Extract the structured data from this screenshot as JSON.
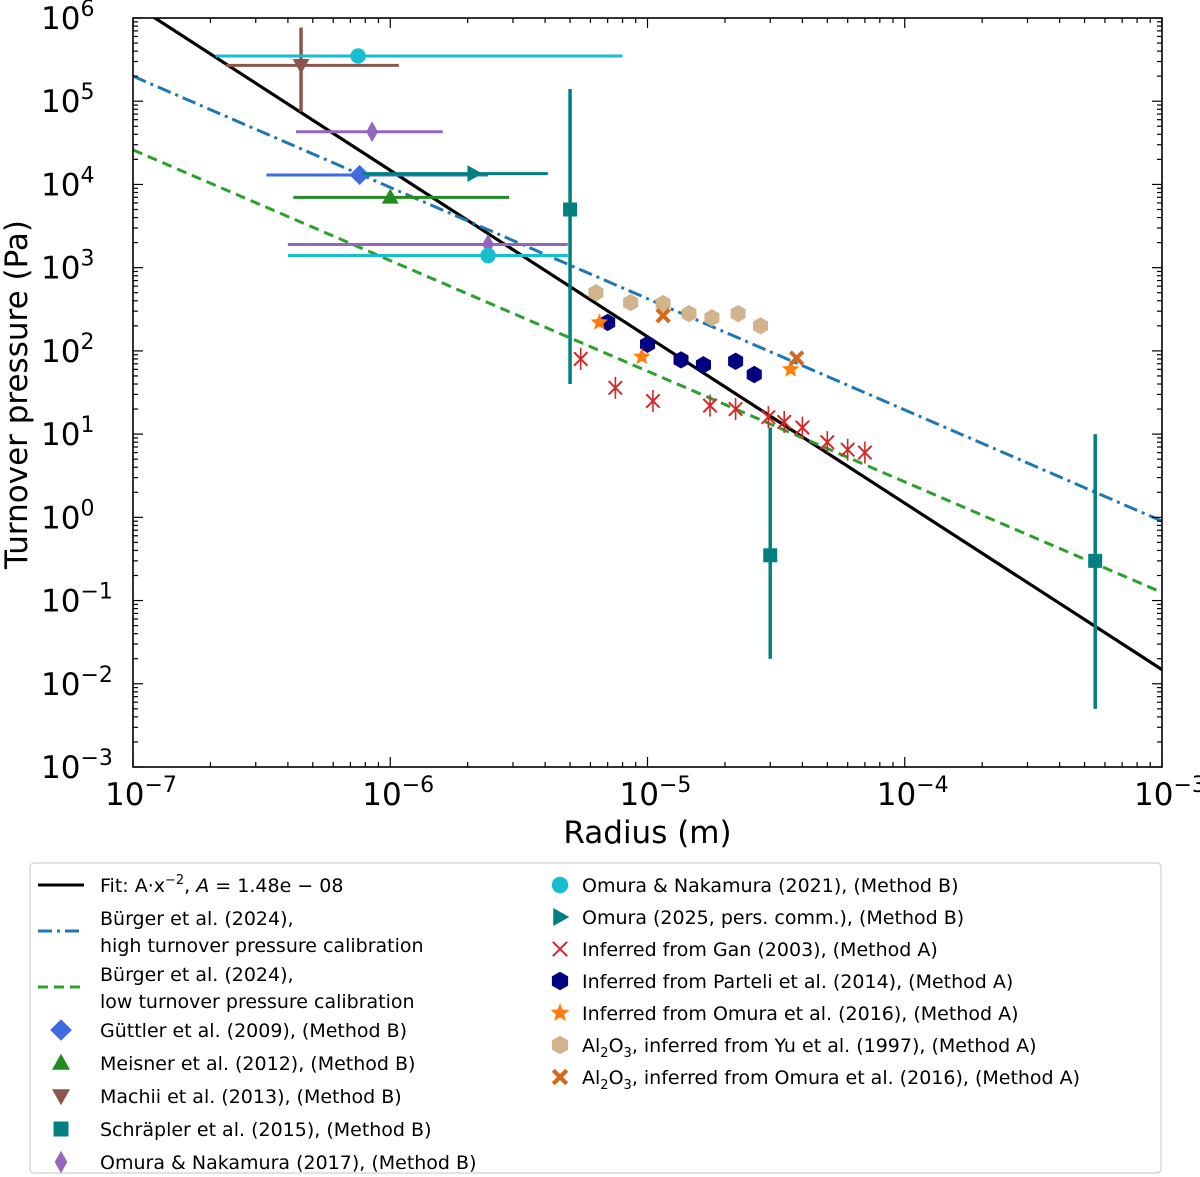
{
  "chart_data": {
    "type": "scatter",
    "xscale": "log",
    "yscale": "log",
    "xlabel": "Radius (m)",
    "ylabel": "Turnover pressure (Pa)",
    "xlim": [
      1e-07,
      0.001
    ],
    "ylim": [
      0.001,
      1000000.0
    ],
    "x_ticks": [
      {
        "value": 1e-07,
        "base": "10",
        "exp": "−7"
      },
      {
        "value": 1e-06,
        "base": "10",
        "exp": "−6"
      },
      {
        "value": 1e-05,
        "base": "10",
        "exp": "−5"
      },
      {
        "value": 0.0001,
        "base": "10",
        "exp": "−4"
      },
      {
        "value": 0.001,
        "base": "10",
        "exp": "−3"
      }
    ],
    "y_ticks": [
      {
        "value": 0.001,
        "base": "10",
        "exp": "−3"
      },
      {
        "value": 0.01,
        "base": "10",
        "exp": "−2"
      },
      {
        "value": 0.1,
        "base": "10",
        "exp": "−1"
      },
      {
        "value": 1.0,
        "base": "10",
        "exp": "0"
      },
      {
        "value": 10.0,
        "base": "10",
        "exp": "1"
      },
      {
        "value": 100.0,
        "base": "10",
        "exp": "2"
      },
      {
        "value": 1000.0,
        "base": "10",
        "exp": "3"
      },
      {
        "value": 10000.0,
        "base": "10",
        "exp": "4"
      },
      {
        "value": 100000.0,
        "base": "10",
        "exp": "5"
      },
      {
        "value": 1000000.0,
        "base": "10",
        "exp": "6"
      }
    ],
    "lines": [
      {
        "id": "fit",
        "color": "#000000",
        "dash": "solid",
        "A": 1.48e-08,
        "exponent": -2
      },
      {
        "id": "burger_high",
        "color": "#1f77b4",
        "dash": "dashdot",
        "points": [
          [
            1e-07,
            200000.0
          ],
          [
            0.001,
            0.9
          ]
        ]
      },
      {
        "id": "burger_low",
        "color": "#2ca02c",
        "dash": "dashed",
        "points": [
          [
            1e-07,
            26000.0
          ],
          [
            0.001,
            0.125
          ]
        ]
      }
    ],
    "series": [
      {
        "name": "Güttler (2009)",
        "marker": "diamond",
        "color": "#4169e1",
        "points": [
          {
            "x": 7.6e-07,
            "y": 13000,
            "xerr": [
              3.3e-07,
              2.4e-06
            ]
          }
        ]
      },
      {
        "name": "Meisner (2012)",
        "marker": "triangle-up",
        "color": "#228b22",
        "points": [
          {
            "x": 1e-06,
            "y": 7000,
            "xerr": [
              4.2e-07,
              2.9e-06
            ]
          }
        ]
      },
      {
        "name": "Machii (2013)",
        "marker": "triangle-down",
        "color": "#8c564b",
        "points": [
          {
            "x": 4.5e-07,
            "y": 270000,
            "xerr": [
              2.3e-07,
              1.08e-06
            ],
            "yerr": [
              75000,
              770000
            ]
          }
        ]
      },
      {
        "name": "Schräpler (2015)",
        "marker": "square",
        "color": "#008080",
        "points": [
          {
            "x": 5e-06,
            "y": 5000,
            "yerr": [
              40,
              140000
            ]
          },
          {
            "x": 3e-05,
            "y": 0.35,
            "yerr": [
              0.02,
              12
            ]
          },
          {
            "x": 0.00055,
            "y": 0.3,
            "yerr": [
              0.005,
              10
            ]
          }
        ]
      },
      {
        "name": "Omura & Nakamura (2017)",
        "marker": "thin-diamond",
        "color": "#9467bd",
        "points": [
          {
            "x": 8.5e-07,
            "y": 43000,
            "xerr": [
              4.3e-07,
              1.6e-06
            ]
          },
          {
            "x": 2.4e-06,
            "y": 1900,
            "xerr": [
              4e-07,
              4.9e-06
            ]
          }
        ]
      },
      {
        "name": "Omura & Nakamura (2021)",
        "marker": "circle",
        "color": "#17becf",
        "points": [
          {
            "x": 7.5e-07,
            "y": 350000,
            "xerr": [
              2.1e-07,
              8e-06
            ]
          },
          {
            "x": 2.4e-06,
            "y": 1400,
            "xerr": [
              4e-07,
              4.9e-06
            ]
          }
        ]
      },
      {
        "name": "Omura (2025)",
        "marker": "triangle-right",
        "color": "#008080",
        "points": [
          {
            "x": 3.2e-06,
            "y": 13500,
            "xerr": [
              7.8e-07,
              4.1e-06
            ],
            "arrow": true
          }
        ]
      },
      {
        "name": "Gan (2003)",
        "marker": "x",
        "color": "#d62728",
        "points": [
          {
            "x": 5.5e-06,
            "y": 80
          },
          {
            "x": 7.5e-06,
            "y": 36
          },
          {
            "x": 1.05e-05,
            "y": 25
          },
          {
            "x": 1.75e-05,
            "y": 22
          },
          {
            "x": 2.2e-05,
            "y": 20
          },
          {
            "x": 2.95e-05,
            "y": 16
          },
          {
            "x": 3.4e-05,
            "y": 14
          },
          {
            "x": 4e-05,
            "y": 12
          },
          {
            "x": 5e-05,
            "y": 8
          },
          {
            "x": 6e-05,
            "y": 6.5
          },
          {
            "x": 7e-05,
            "y": 6
          }
        ]
      },
      {
        "name": "Parteli (2014)",
        "marker": "hexagon",
        "color": "#000080",
        "points": [
          {
            "x": 7e-06,
            "y": 220
          },
          {
            "x": 1e-05,
            "y": 120
          },
          {
            "x": 1.35e-05,
            "y": 78
          },
          {
            "x": 1.65e-05,
            "y": 68
          },
          {
            "x": 2.2e-05,
            "y": 75
          },
          {
            "x": 2.6e-05,
            "y": 52
          }
        ]
      },
      {
        "name": "Omura (2016)",
        "marker": "star",
        "color": "#ff7f0e",
        "points": [
          {
            "x": 6.5e-06,
            "y": 220
          },
          {
            "x": 9.5e-06,
            "y": 85
          },
          {
            "x": 3.6e-05,
            "y": 60
          }
        ]
      },
      {
        "name": "Yu (1997)",
        "marker": "hexagon",
        "color": "#d2b48c",
        "points": [
          {
            "x": 6.3e-06,
            "y": 500
          },
          {
            "x": 8.6e-06,
            "y": 380
          },
          {
            "x": 1.15e-05,
            "y": 370
          },
          {
            "x": 1.45e-05,
            "y": 280
          },
          {
            "x": 1.78e-05,
            "y": 250
          },
          {
            "x": 2.25e-05,
            "y": 280
          },
          {
            "x": 2.75e-05,
            "y": 200
          }
        ]
      },
      {
        "name": "Al2O3 Omura (2016)",
        "marker": "X",
        "color": "#d2691e",
        "points": [
          {
            "x": 1.15e-05,
            "y": 265
          },
          {
            "x": 3.8e-05,
            "y": 82
          }
        ]
      }
    ]
  },
  "legend": {
    "left": [
      {
        "id": "fit",
        "kind": "line",
        "color": "#000000",
        "dash": "solid",
        "lines": [
          "Fit: A·x",
          "−2",
          ",  ",
          "A",
          " = 1.48e − 08"
        ]
      },
      {
        "id": "burger_high",
        "kind": "line",
        "color": "#1f77b4",
        "dash": "dashdot",
        "lines": [
          "Bürger et al. (2024),",
          "high turnover pressure calibration"
        ]
      },
      {
        "id": "burger_low",
        "kind": "line",
        "color": "#2ca02c",
        "dash": "dashed",
        "lines": [
          "Bürger et al. (2024),",
          "low turnover pressure calibration"
        ]
      },
      {
        "id": "guttler",
        "kind": "marker",
        "marker": "diamond",
        "color": "#4169e1",
        "lines": [
          "Güttler et al. (2009), (Method B)"
        ]
      },
      {
        "id": "meisner",
        "kind": "marker",
        "marker": "triangle-up",
        "color": "#228b22",
        "lines": [
          "Meisner et al. (2012), (Method B)"
        ]
      },
      {
        "id": "machii",
        "kind": "marker",
        "marker": "triangle-down",
        "color": "#8c564b",
        "lines": [
          "Machii et al. (2013), (Method B)"
        ]
      },
      {
        "id": "schrapler",
        "kind": "marker",
        "marker": "square",
        "color": "#008080",
        "lines": [
          "Schräpler et al. (2015), (Method B)"
        ]
      },
      {
        "id": "omura2017",
        "kind": "marker",
        "marker": "thin-diamond",
        "color": "#9467bd",
        "lines": [
          "Omura & Nakamura (2017), (Method B)"
        ]
      }
    ],
    "right": [
      {
        "id": "omura2021",
        "kind": "marker",
        "marker": "circle",
        "color": "#17becf",
        "lines": [
          "Omura & Nakamura (2021), (Method B)"
        ]
      },
      {
        "id": "omura2025",
        "kind": "marker",
        "marker": "triangle-right",
        "color": "#008080",
        "lines": [
          "Omura (2025, pers. comm.), (Method B)"
        ]
      },
      {
        "id": "gan",
        "kind": "marker",
        "marker": "x",
        "color": "#d62728",
        "lines": [
          "Inferred from Gan (2003), (Method A)"
        ]
      },
      {
        "id": "parteli",
        "kind": "marker",
        "marker": "hexagon",
        "color": "#000080",
        "lines": [
          "Inferred from Parteli et al. (2014), (Method A)"
        ]
      },
      {
        "id": "omura2016",
        "kind": "marker",
        "marker": "star",
        "color": "#ff7f0e",
        "lines": [
          "Inferred from Omura et al. (2016), (Method A)"
        ]
      },
      {
        "id": "yu",
        "kind": "marker",
        "marker": "hexagon",
        "color": "#d2b48c",
        "lines": [
          "Al",
          "2",
          "O",
          "3",
          ", inferred from Yu et al. (1997), (Method A)"
        ]
      },
      {
        "id": "al2o3_omura",
        "kind": "marker",
        "marker": "X",
        "color": "#d2691e",
        "lines": [
          "Al",
          "2",
          "O",
          "3",
          ", inferred from Omura et al. (2016), (Method A)"
        ]
      }
    ]
  }
}
